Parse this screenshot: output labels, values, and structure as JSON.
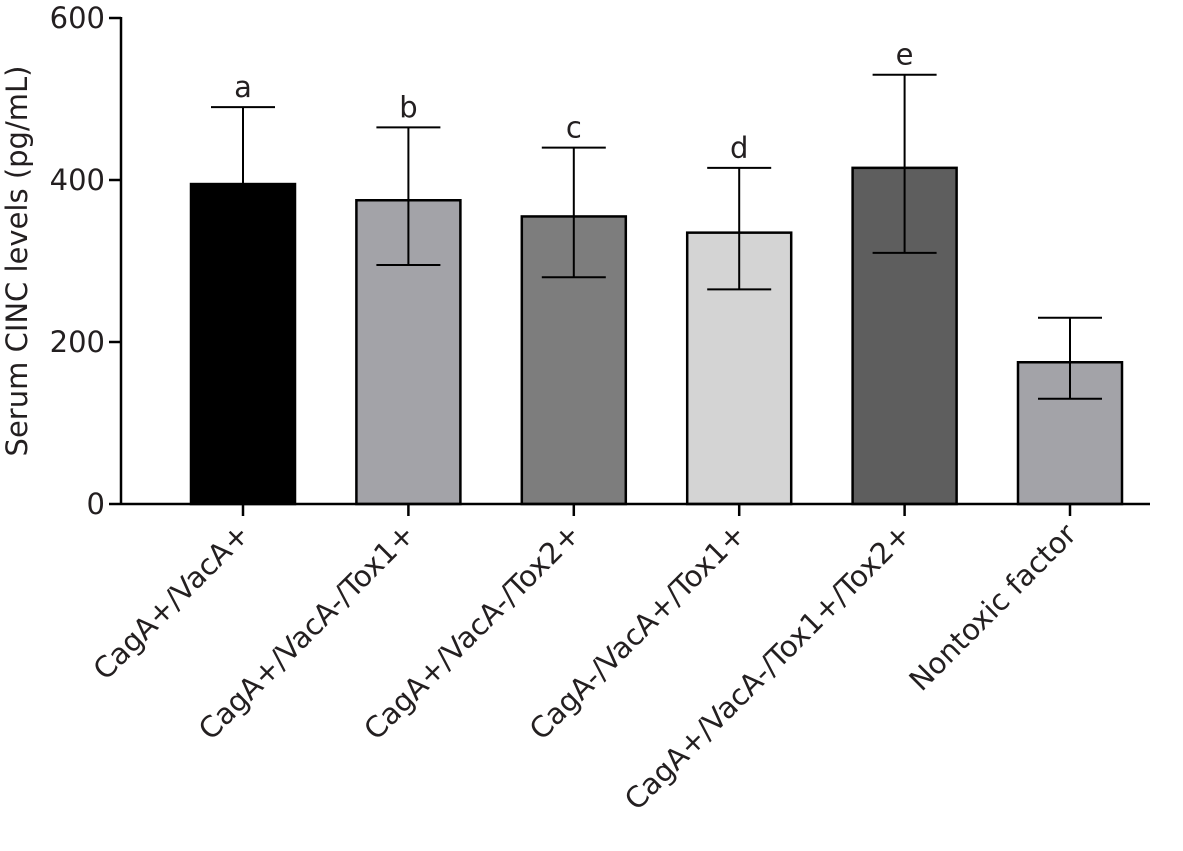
{
  "chart_data": {
    "type": "bar",
    "title": "",
    "xlabel": "",
    "ylabel": "Serum CINC levels (pg/mL)",
    "ylim": [
      0,
      600
    ],
    "yticks": [
      0,
      200,
      400,
      600
    ],
    "grid": false,
    "categories": [
      "CagA+/VacA+",
      "CagA+/VacA-/Tox1+",
      "CagA+/VacA-/Tox2+",
      "CagA-/VacA+/Tox1+",
      "CagA+/VacA-/Tox1+/Tox2+",
      "Nontoxic factor"
    ],
    "values": [
      395,
      375,
      355,
      335,
      415,
      175
    ],
    "error_upper": [
      490,
      465,
      440,
      415,
      530,
      230
    ],
    "error_lower": [
      395,
      295,
      280,
      265,
      310,
      130
    ],
    "annotations": [
      "a",
      "b",
      "c",
      "d",
      "e",
      ""
    ],
    "colors": [
      "#000000",
      "#a3a3a8",
      "#7d7d7d",
      "#d4d4d4",
      "#5e5e5e",
      "#a3a3a8"
    ]
  }
}
